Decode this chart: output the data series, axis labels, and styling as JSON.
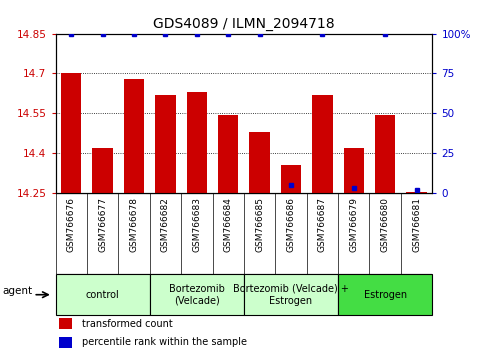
{
  "title": "GDS4089 / ILMN_2094718",
  "samples": [
    "GSM766676",
    "GSM766677",
    "GSM766678",
    "GSM766682",
    "GSM766683",
    "GSM766684",
    "GSM766685",
    "GSM766686",
    "GSM766687",
    "GSM766679",
    "GSM766680",
    "GSM766681"
  ],
  "transformed_counts": [
    14.7,
    14.42,
    14.68,
    14.62,
    14.63,
    14.545,
    14.48,
    14.355,
    14.62,
    14.42,
    14.545,
    14.255
  ],
  "percentile_ranks": [
    100,
    100,
    100,
    100,
    100,
    100,
    100,
    5,
    100,
    3,
    100,
    2
  ],
  "bar_color": "#cc0000",
  "dot_color": "#0000cc",
  "ylim_left": [
    14.25,
    14.85
  ],
  "ylim_right": [
    0,
    100
  ],
  "yticks_left": [
    14.25,
    14.4,
    14.55,
    14.7,
    14.85
  ],
  "yticks_right": [
    0,
    25,
    50,
    75,
    100
  ],
  "ytick_labels_left": [
    "14.25",
    "14.4",
    "14.55",
    "14.7",
    "14.85"
  ],
  "ytick_labels_right": [
    "0",
    "25",
    "50",
    "75",
    "100%"
  ],
  "group_spans": [
    {
      "start": 0,
      "end": 2,
      "label": "control",
      "color": "#ccffcc"
    },
    {
      "start": 3,
      "end": 5,
      "label": "Bortezomib\n(Velcade)",
      "color": "#ccffcc"
    },
    {
      "start": 6,
      "end": 8,
      "label": "Bortezomib (Velcade) +\nEstrogen",
      "color": "#ccffcc"
    },
    {
      "start": 9,
      "end": 11,
      "label": "Estrogen",
      "color": "#44dd44"
    }
  ],
  "agent_label": "agent",
  "legend_items": [
    {
      "color": "#cc0000",
      "label": "transformed count"
    },
    {
      "color": "#0000cc",
      "label": "percentile rank within the sample"
    }
  ],
  "xtick_bg_color": "#cccccc",
  "title_fontsize": 10,
  "bar_width": 0.65
}
